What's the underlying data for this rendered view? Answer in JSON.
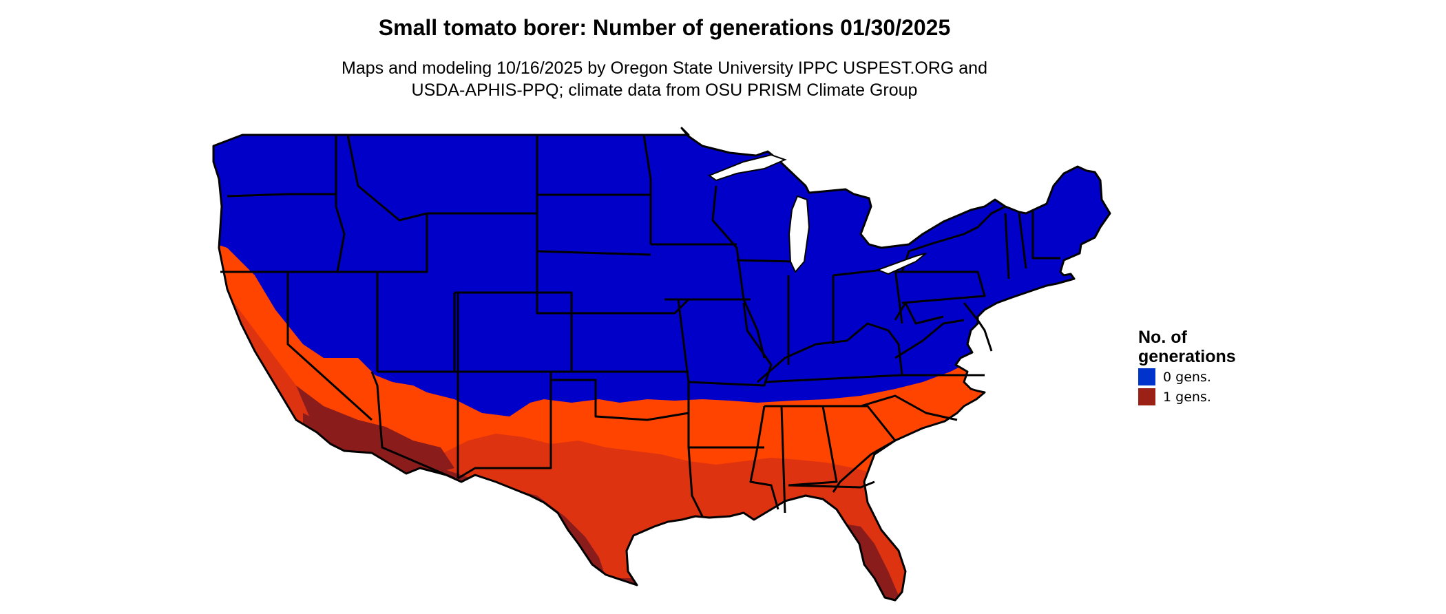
{
  "title": "Small tomato borer: Number of generations 01/30/2025",
  "subtitle_lines": [
    "Maps and modeling 10/16/2025 by Oregon State University IPPC USPEST.ORG and",
    "USDA-APHIS-PPQ; climate data from OSU PRISM Climate Group"
  ],
  "legend": {
    "title_lines": [
      "No. of",
      "generations"
    ],
    "items": [
      {
        "label": "0 gens.",
        "color": "#0033cc"
      },
      {
        "label": "1 gens.",
        "color": "#9b2015"
      }
    ]
  },
  "colors": {
    "zero_gen_fill": "#0000c8",
    "one_gen_light": "#ff4400",
    "one_gen_mid": "#dd3310",
    "one_gen_dark": "#8b1c1c",
    "state_borders": "#000000"
  }
}
